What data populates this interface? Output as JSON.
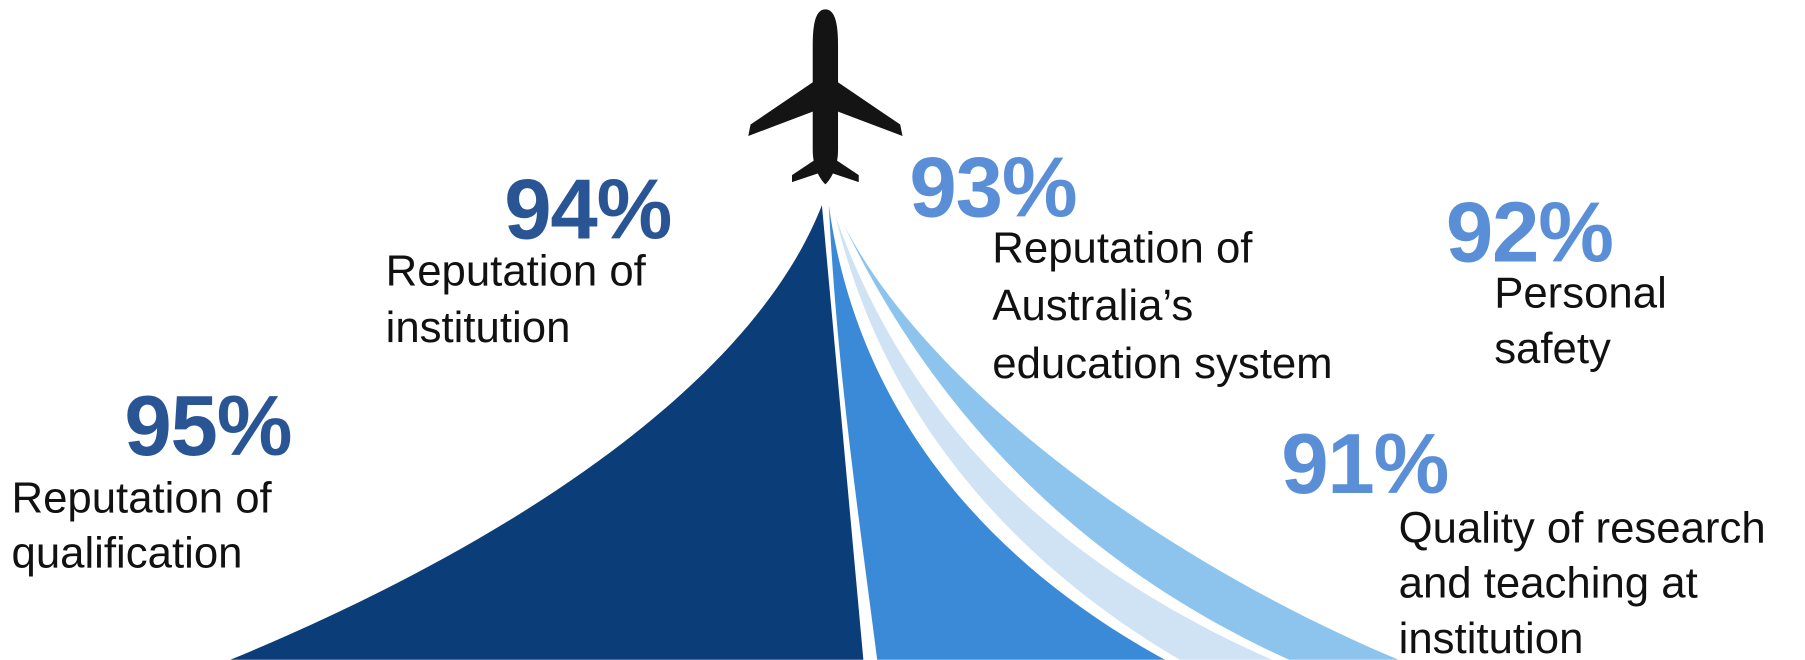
{
  "items": [
    {
      "percent": "95%",
      "label": [
        "Reputation of",
        "qualification"
      ]
    },
    {
      "percent": "94%",
      "label": [
        "Reputation of",
        "institution"
      ]
    },
    {
      "percent": "93%",
      "label": [
        "Reputation of",
        "Australia’s",
        "education system"
      ]
    },
    {
      "percent": "92%",
      "label": [
        "Personal",
        "safety"
      ]
    },
    {
      "percent": "91%",
      "label": [
        "Quality of research",
        "and teaching at",
        "institution"
      ]
    }
  ]
}
